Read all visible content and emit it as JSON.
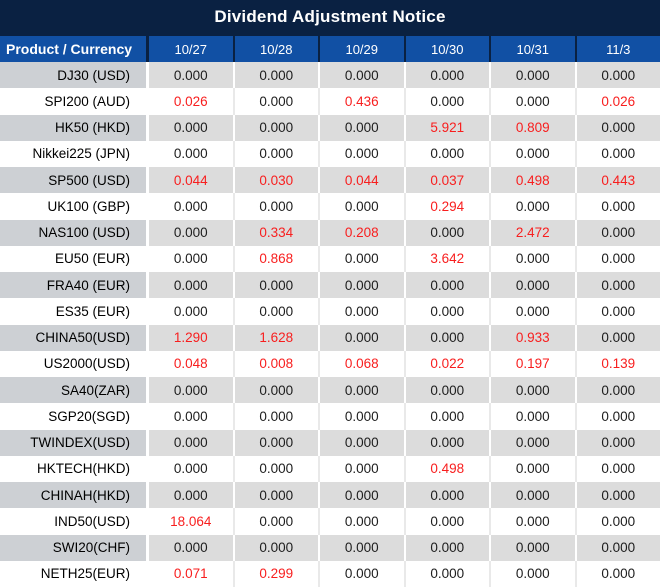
{
  "title": "Dividend Adjustment Notice",
  "table": {
    "product_header": "Product / Currency",
    "date_headers": [
      "10/27",
      "10/28",
      "10/29",
      "10/30",
      "10/31",
      "11/3"
    ],
    "zero_value": "0.000",
    "rows": [
      {
        "product": "DJ30 (USD)",
        "values": [
          "0.000",
          "0.000",
          "0.000",
          "0.000",
          "0.000",
          "0.000"
        ]
      },
      {
        "product": "SPI200 (AUD)",
        "values": [
          "0.026",
          "0.000",
          "0.436",
          "0.000",
          "0.000",
          "0.026"
        ]
      },
      {
        "product": "HK50 (HKD)",
        "values": [
          "0.000",
          "0.000",
          "0.000",
          "5.921",
          "0.809",
          "0.000"
        ]
      },
      {
        "product": "Nikkei225 (JPN)",
        "values": [
          "0.000",
          "0.000",
          "0.000",
          "0.000",
          "0.000",
          "0.000"
        ]
      },
      {
        "product": "SP500 (USD)",
        "values": [
          "0.044",
          "0.030",
          "0.044",
          "0.037",
          "0.498",
          "0.443"
        ]
      },
      {
        "product": "UK100 (GBP)",
        "values": [
          "0.000",
          "0.000",
          "0.000",
          "0.294",
          "0.000",
          "0.000"
        ]
      },
      {
        "product": "NAS100 (USD)",
        "values": [
          "0.000",
          "0.334",
          "0.208",
          "0.000",
          "2.472",
          "0.000"
        ]
      },
      {
        "product": "EU50 (EUR)",
        "values": [
          "0.000",
          "0.868",
          "0.000",
          "3.642",
          "0.000",
          "0.000"
        ]
      },
      {
        "product": "FRA40 (EUR)",
        "values": [
          "0.000",
          "0.000",
          "0.000",
          "0.000",
          "0.000",
          "0.000"
        ]
      },
      {
        "product": "ES35 (EUR)",
        "values": [
          "0.000",
          "0.000",
          "0.000",
          "0.000",
          "0.000",
          "0.000"
        ]
      },
      {
        "product": "CHINA50(USD)",
        "values": [
          "1.290",
          "1.628",
          "0.000",
          "0.000",
          "0.933",
          "0.000"
        ]
      },
      {
        "product": "US2000(USD)",
        "values": [
          "0.048",
          "0.008",
          "0.068",
          "0.022",
          "0.197",
          "0.139"
        ]
      },
      {
        "product": "SA40(ZAR)",
        "values": [
          "0.000",
          "0.000",
          "0.000",
          "0.000",
          "0.000",
          "0.000"
        ]
      },
      {
        "product": "SGP20(SGD)",
        "values": [
          "0.000",
          "0.000",
          "0.000",
          "0.000",
          "0.000",
          "0.000"
        ]
      },
      {
        "product": "TWINDEX(USD)",
        "values": [
          "0.000",
          "0.000",
          "0.000",
          "0.000",
          "0.000",
          "0.000"
        ]
      },
      {
        "product": "HKTECH(HKD)",
        "values": [
          "0.000",
          "0.000",
          "0.000",
          "0.498",
          "0.000",
          "0.000"
        ]
      },
      {
        "product": "CHINAH(HKD)",
        "values": [
          "0.000",
          "0.000",
          "0.000",
          "0.000",
          "0.000",
          "0.000"
        ]
      },
      {
        "product": "IND50(USD)",
        "values": [
          "18.064",
          "0.000",
          "0.000",
          "0.000",
          "0.000",
          "0.000"
        ]
      },
      {
        "product": "SWI20(CHF)",
        "values": [
          "0.000",
          "0.000",
          "0.000",
          "0.000",
          "0.000",
          "0.000"
        ]
      },
      {
        "product": "NETH25(EUR)",
        "values": [
          "0.071",
          "0.299",
          "0.000",
          "0.000",
          "0.000",
          "0.000"
        ]
      }
    ]
  },
  "colors": {
    "title_bar": "#0a2142",
    "header": "#1150a4",
    "zero_text": "#1d1d1d",
    "dividend_text": "#f81e1e",
    "row_gray_product": "#cdd0d4",
    "row_gray_value": "#dcdcdc",
    "row_white": "#ffffff"
  }
}
